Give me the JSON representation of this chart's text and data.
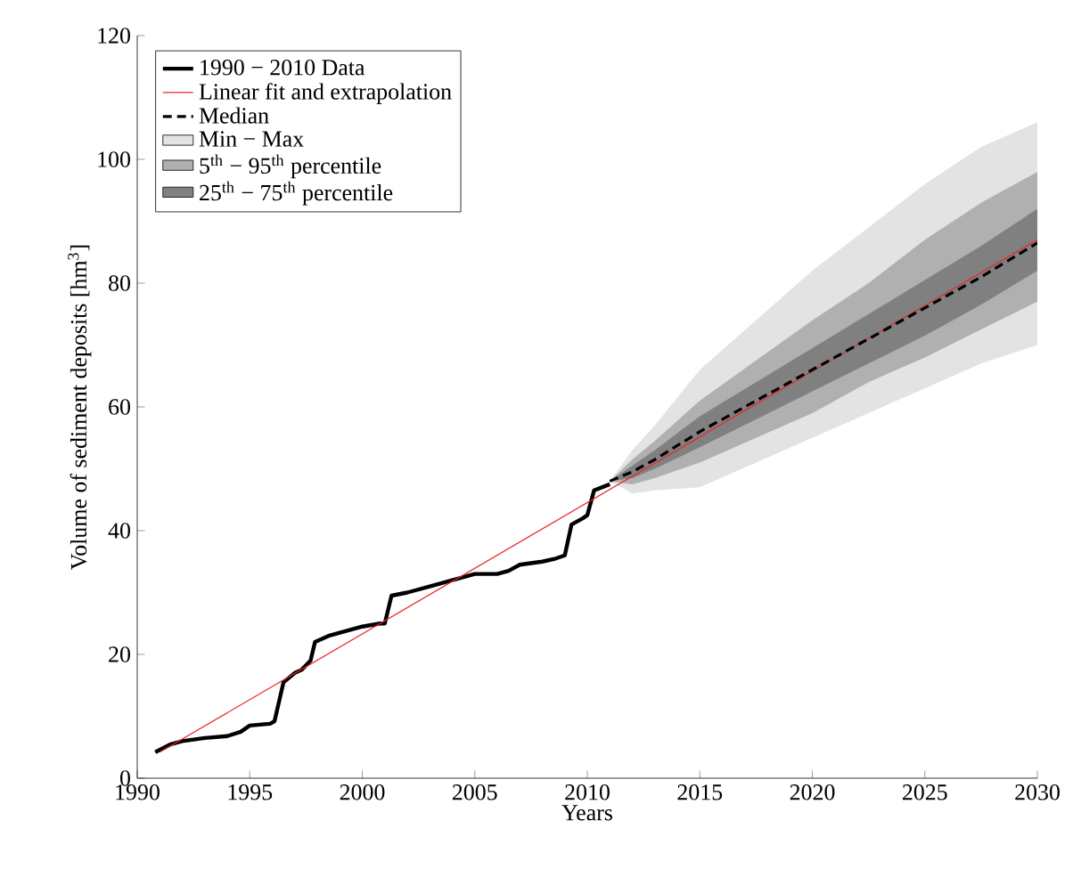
{
  "chart_data": {
    "type": "line",
    "xlabel": "Years",
    "ylabel": "Volume of sediment deposits [hm$^{3}$]",
    "xlim": [
      1990,
      2030
    ],
    "ylim": [
      0,
      120
    ],
    "xticks": [
      1990,
      1995,
      2000,
      2005,
      2010,
      2015,
      2020,
      2025,
      2030
    ],
    "yticks": [
      0,
      20,
      40,
      60,
      80,
      100,
      120
    ],
    "grid": false,
    "legend": "top left",
    "series": [
      {
        "name": "1990 − 2010 Data",
        "color": "#000000",
        "line_style": "solid",
        "x": [
          1990.8,
          1991.5,
          1992,
          1993,
          1994,
          1994.6,
          1995,
          1995.9,
          1996.1,
          1996.5,
          1997,
          1997.3,
          1997.7,
          1997.9,
          1998.5,
          1999,
          1999.5,
          2000,
          2000.8,
          2001,
          2001.3,
          2002,
          2003,
          2004,
          2005,
          2006,
          2006.5,
          2007,
          2008,
          2008.6,
          2009,
          2009.3,
          2009.8,
          2010,
          2010.3,
          2011
        ],
        "values": [
          4.2,
          5.5,
          6,
          6.5,
          6.8,
          7.5,
          8.5,
          8.8,
          9.2,
          15.5,
          17,
          17.5,
          19,
          22,
          23,
          23.5,
          24,
          24.5,
          25,
          25,
          29.5,
          30,
          31,
          32,
          33,
          33,
          33.5,
          34.5,
          35,
          35.5,
          36,
          41,
          42,
          42.5,
          46.5,
          47.5
        ]
      },
      {
        "name": "Linear fit and extrapolation",
        "color": "#e8262a",
        "line_style": "solid",
        "x": [
          1991,
          2030
        ],
        "values": [
          4.2,
          87
        ]
      },
      {
        "name": "Median",
        "color": "#000000",
        "line_style": "dashed",
        "x": [
          2011,
          2012,
          2013,
          2015,
          2017.5,
          2020,
          2022.5,
          2025,
          2027.5,
          2030
        ],
        "values": [
          48,
          49.5,
          51.5,
          56,
          61,
          66,
          71,
          76,
          81,
          86.5
        ]
      },
      {
        "name": "Min − Max",
        "type": "area",
        "color": "#e3e3e3",
        "x": [
          2011,
          2012,
          2013,
          2015,
          2017.5,
          2020,
          2022.5,
          2025,
          2027.5,
          2030
        ],
        "values": [
          null,
          null,
          null,
          null,
          null,
          null,
          null,
          null,
          null,
          null
        ],
        "lower": [
          48,
          46,
          46.5,
          47,
          51,
          55,
          59,
          63,
          67,
          70
        ],
        "upper": [
          48,
          53,
          57,
          66,
          74,
          82,
          89,
          96,
          102,
          106
        ]
      },
      {
        "name": "5$^{th}$ − 95$^{th}$ percentile",
        "type": "area",
        "color": "#b0b0b0",
        "x": [
          2011,
          2012,
          2013,
          2015,
          2017.5,
          2020,
          2022.5,
          2025,
          2027.5,
          2030
        ],
        "values": [
          null,
          null,
          null,
          null,
          null,
          null,
          null,
          null,
          null,
          null
        ],
        "lower": [
          48,
          47.5,
          48.5,
          51,
          55,
          59,
          64,
          68,
          72.5,
          77
        ],
        "upper": [
          48,
          51.5,
          54.5,
          61,
          67.5,
          74,
          80,
          87,
          93,
          98
        ]
      },
      {
        "name": "25$^{th}$ − 75$^{th}$ percentile",
        "type": "area",
        "color": "#808080",
        "x": [
          2011,
          2012,
          2013,
          2015,
          2017.5,
          2020,
          2022.5,
          2025,
          2027.5,
          2030
        ],
        "values": [
          null,
          null,
          null,
          null,
          null,
          null,
          null,
          null,
          null,
          null
        ],
        "lower": [
          48,
          48.5,
          50,
          53.5,
          58,
          62.5,
          67,
          71.5,
          76.5,
          82
        ],
        "upper": [
          48,
          50.5,
          53,
          58.5,
          64,
          69.5,
          75,
          80.5,
          86,
          92
        ]
      }
    ]
  }
}
